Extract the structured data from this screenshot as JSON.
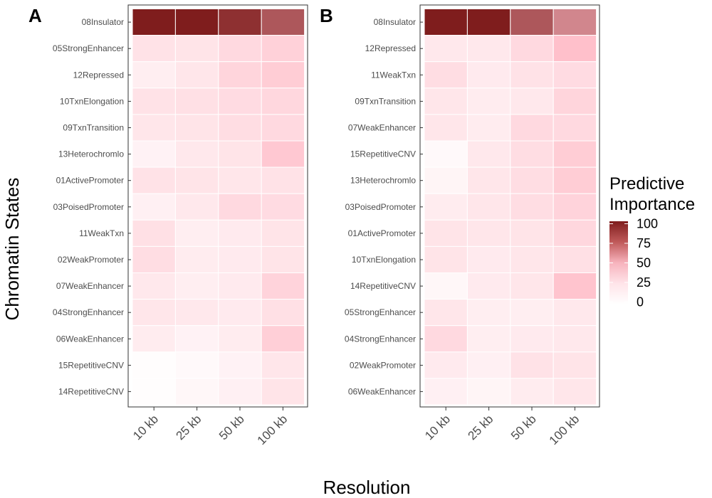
{
  "x_axis_title": "Resolution",
  "y_axis_title": "Chromatin States",
  "legend": {
    "title_line1": "Predictive",
    "title_line2": "Importance",
    "ticks": [
      "100",
      "75",
      "50",
      "25",
      "0"
    ],
    "tick_values": [
      100,
      75,
      50,
      25,
      0
    ],
    "low_color": "#ffffff",
    "mid_color": "#ffc0cb",
    "high_color": "#7f1d1d"
  },
  "chart_data": [
    {
      "type": "heatmap",
      "panel": "A",
      "x": [
        "10 kb",
        "25 kb",
        "50 kb",
        "100 kb"
      ],
      "y": [
        "08Insulator",
        "05StrongEnhancer",
        "12Repressed",
        "10TxnElongation",
        "09TxnTransition",
        "13Heterochromlo",
        "01ActivePromoter",
        "03PoisedPromoter",
        "11WeakTxn",
        "02WeakPromoter",
        "07WeakEnhancer",
        "04StrongEnhancer",
        "06WeakEnhancer",
        "15RepetitiveCNV",
        "14RepetitiveCNV"
      ],
      "values": [
        [
          100,
          100,
          92,
          75
        ],
        [
          14,
          13,
          18,
          22
        ],
        [
          8,
          12,
          20,
          24
        ],
        [
          14,
          15,
          17,
          19
        ],
        [
          12,
          13,
          16,
          18
        ],
        [
          6,
          11,
          13,
          26
        ],
        [
          14,
          13,
          12,
          14
        ],
        [
          7,
          11,
          18,
          17
        ],
        [
          15,
          8,
          10,
          13
        ],
        [
          16,
          9,
          10,
          13
        ],
        [
          11,
          8,
          10,
          21
        ],
        [
          12,
          11,
          10,
          15
        ],
        [
          9,
          6,
          9,
          23
        ],
        [
          1,
          3,
          6,
          12
        ],
        [
          1,
          4,
          7,
          13
        ]
      ],
      "colorbar_range": [
        0,
        100
      ]
    },
    {
      "type": "heatmap",
      "panel": "B",
      "x": [
        "10 kb",
        "25 kb",
        "50 kb",
        "100 kb"
      ],
      "y": [
        "08Insulator",
        "12Repressed",
        "11WeakTxn",
        "09TxnTransition",
        "07WeakEnhancer",
        "15RepetitiveCNV",
        "13Heterochromlo",
        "03PoisedPromoter",
        "01ActivePromoter",
        "10TxnElongation",
        "14RepetitiveCNV",
        "05StrongEnhancer",
        "04StrongEnhancer",
        "02WeakPromoter",
        "06WeakEnhancer"
      ],
      "values": [
        [
          100,
          100,
          75,
          55
        ],
        [
          11,
          11,
          18,
          30
        ],
        [
          16,
          10,
          14,
          17
        ],
        [
          12,
          9,
          11,
          20
        ],
        [
          12,
          9,
          18,
          18
        ],
        [
          3,
          11,
          16,
          24
        ],
        [
          5,
          12,
          16,
          24
        ],
        [
          9,
          12,
          16,
          21
        ],
        [
          13,
          12,
          13,
          19
        ],
        [
          13,
          10,
          12,
          15
        ],
        [
          4,
          10,
          12,
          28
        ],
        [
          12,
          8,
          8,
          11
        ],
        [
          18,
          8,
          10,
          11
        ],
        [
          10,
          7,
          14,
          13
        ],
        [
          7,
          5,
          9,
          12
        ]
      ],
      "colorbar_range": [
        0,
        100
      ]
    }
  ]
}
